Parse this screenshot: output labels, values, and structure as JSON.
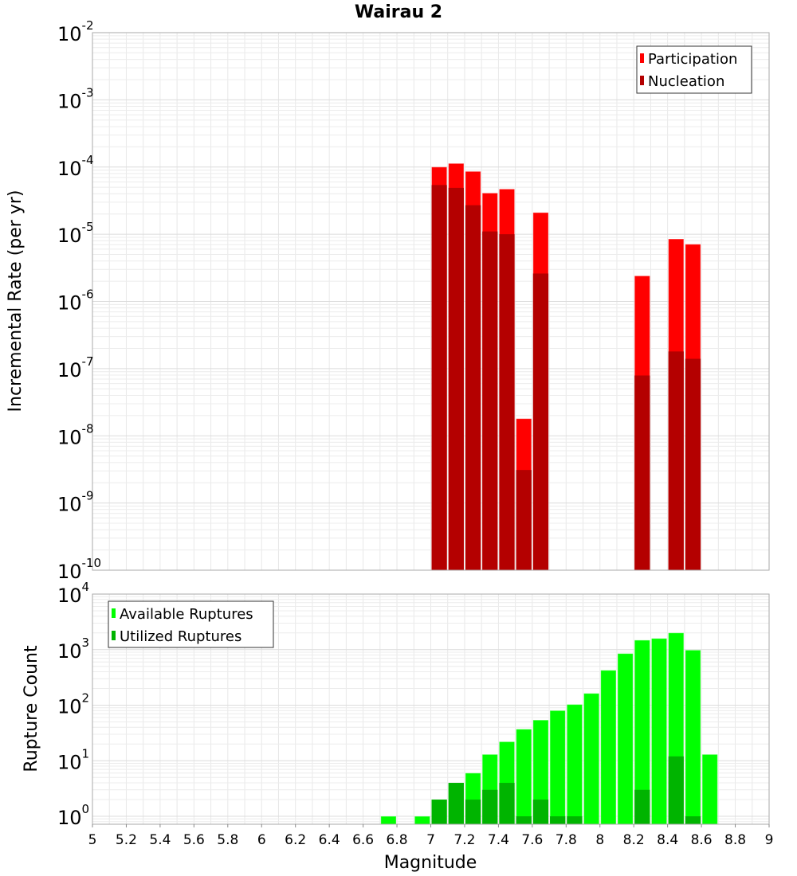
{
  "chart_data": [
    {
      "type": "bar",
      "title": "Wairau 2",
      "xlabel": "",
      "ylabel": "Incremental Rate (per yr)",
      "yscale": "log",
      "xlim": [
        5,
        9
      ],
      "ylim": [
        1e-10,
        0.01
      ],
      "y_tick_exponents": [
        -2,
        -3,
        -4,
        -5,
        -6,
        -7,
        -8,
        -9,
        -10
      ],
      "bin_width": 0.1,
      "grid": true,
      "legend_position": "top-right",
      "x": [
        7.0,
        7.1,
        7.2,
        7.3,
        7.4,
        7.5,
        7.6,
        8.2,
        8.4,
        8.5
      ],
      "series": [
        {
          "name": "Participation",
          "color": "#ff0000",
          "values": [
            0.0001,
            0.000113,
            8.6e-05,
            4.1e-05,
            4.7e-05,
            1.8e-08,
            2.1e-05,
            2.4e-06,
            8.5e-06,
            7.1e-06
          ]
        },
        {
          "name": "Nucleation",
          "color": "#b40000",
          "values": [
            5.4e-05,
            4.9e-05,
            2.7e-05,
            1.1e-05,
            1e-05,
            3.1e-09,
            2.6e-06,
            7.9e-08,
            1.8e-07,
            1.4e-07
          ]
        }
      ]
    },
    {
      "type": "bar",
      "title": "",
      "xlabel": "Magnitude",
      "ylabel": "Rupture Count",
      "yscale": "log",
      "xlim": [
        5,
        9
      ],
      "ylim": [
        0.72,
        10000
      ],
      "y_tick_exponents": [
        4,
        3,
        2,
        1,
        0
      ],
      "x_ticks": [
        "5",
        "5.2",
        "5.4",
        "5.6",
        "5.8",
        "6",
        "6.2",
        "6.4",
        "6.6",
        "6.8",
        "7",
        "7.2",
        "7.4",
        "7.6",
        "7.8",
        "8",
        "8.2",
        "8.4",
        "8.6",
        "8.8",
        "9"
      ],
      "bin_width": 0.1,
      "grid": true,
      "legend_position": "top-left",
      "x": [
        6.7,
        6.9,
        7.0,
        7.1,
        7.2,
        7.3,
        7.4,
        7.5,
        7.6,
        7.7,
        7.8,
        7.9,
        8.0,
        8.1,
        8.2,
        8.3,
        8.4,
        8.5,
        8.6
      ],
      "series": [
        {
          "name": "Available Ruptures",
          "color": "#00ff00",
          "values": [
            1,
            1,
            2,
            4,
            6,
            13,
            22,
            37,
            54,
            80,
            103,
            163,
            425,
            850,
            1480,
            1590,
            2000,
            980,
            13
          ]
        },
        {
          "name": "Utilized Ruptures",
          "color": "#00b400",
          "values": [
            0,
            0,
            2,
            4,
            2,
            3,
            4,
            1,
            2,
            1,
            1,
            0,
            0,
            0,
            3,
            0,
            12,
            1,
            0
          ]
        }
      ]
    }
  ]
}
